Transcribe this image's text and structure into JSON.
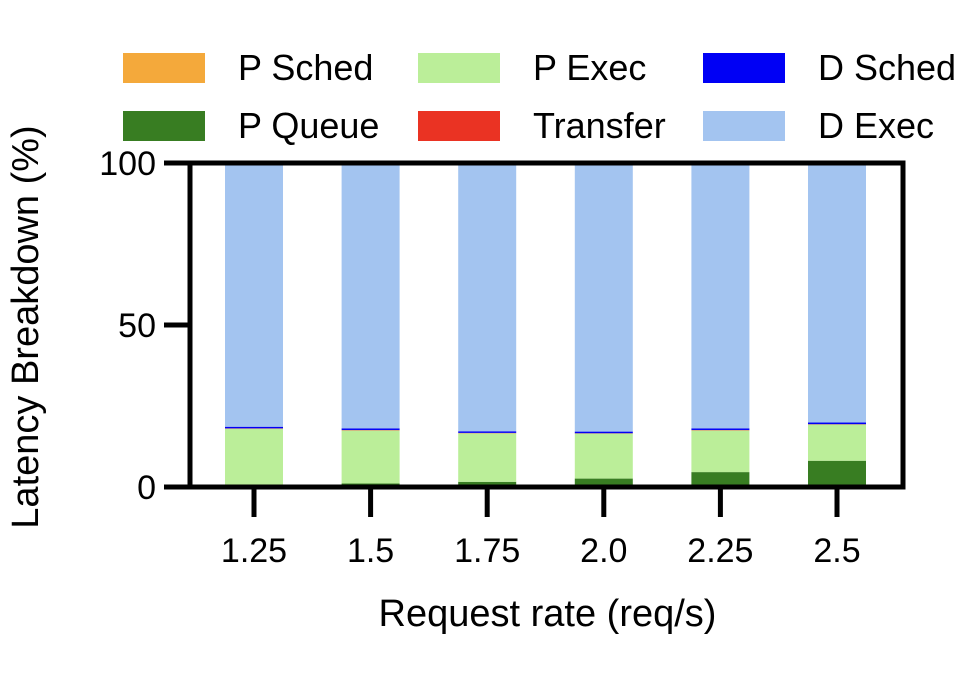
{
  "chart_data": {
    "type": "bar",
    "stacked": true,
    "categories": [
      "1.25",
      "1.5",
      "1.75",
      "2.0",
      "2.25",
      "2.5"
    ],
    "xlabel": "Request rate (req/s)",
    "ylabel": "Latency Breakdown (%)",
    "ylim": [
      0,
      100
    ],
    "yticks": [
      "0",
      "50",
      "100"
    ],
    "grid": false,
    "legend_position": "top",
    "series": [
      {
        "name": "P Sched",
        "color": "#f4a93b",
        "values": [
          0.1,
          0.1,
          0.1,
          0.1,
          0.1,
          0.1
        ]
      },
      {
        "name": "P Queue",
        "color": "#387d22",
        "values": [
          0.5,
          1.0,
          1.5,
          2.5,
          4.5,
          8.0
        ]
      },
      {
        "name": "P Exec",
        "color": "#bbee99",
        "values": [
          17.4,
          16.4,
          15.0,
          13.9,
          12.9,
          11.2
        ]
      },
      {
        "name": "Transfer",
        "color": "#ea3323",
        "values": [
          0.1,
          0.1,
          0.1,
          0.1,
          0.1,
          0.1
        ]
      },
      {
        "name": "D Sched",
        "color": "#0000f5",
        "values": [
          0.5,
          0.5,
          0.5,
          0.5,
          0.5,
          0.5
        ]
      },
      {
        "name": "D Exec",
        "color": "#a3c4f0",
        "values": [
          81.4,
          81.9,
          82.8,
          82.9,
          81.9,
          80.1
        ]
      }
    ]
  }
}
